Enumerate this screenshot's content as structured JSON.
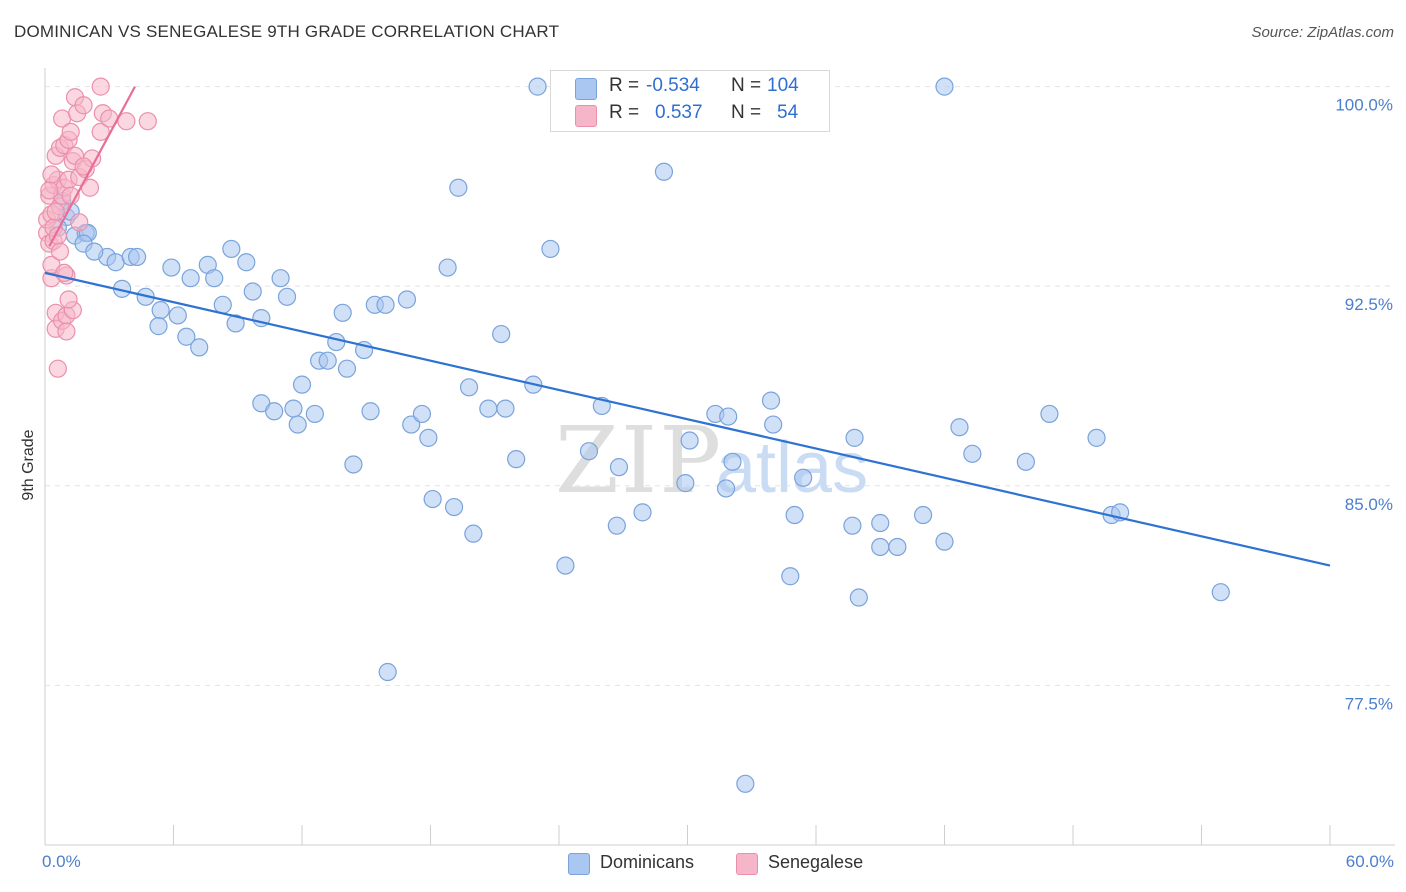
{
  "header": {
    "title": "DOMINICAN VS SENEGALESE 9TH GRADE CORRELATION CHART",
    "source": "Source: ZipAtlas.com"
  },
  "legend": {
    "rows": [
      {
        "r_label": "R =",
        "r_value": "-0.534",
        "n_label": "N =",
        "n_value": "104",
        "color": "#a9c7f0"
      },
      {
        "r_label": "R =",
        "r_value": "0.537",
        "n_label": "N =",
        "n_value": "54",
        "color": "#f6b6c9"
      }
    ]
  },
  "bottom_legend": [
    {
      "label": "Dominicans",
      "color": "#a9c7f0"
    },
    {
      "label": "Senegalese",
      "color": "#f6b6c9"
    }
  ],
  "watermark": {
    "zip": "ZIP",
    "atlas": "atlas"
  },
  "chart_data": {
    "type": "scatter",
    "ylabel": "9th Grade",
    "xlabel": "",
    "xlim": [
      0,
      60
    ],
    "ylim": [
      71.5,
      101
    ],
    "x_tick_labels": [
      "0.0%",
      "60.0%"
    ],
    "y_ticks": [
      77.5,
      85.0,
      92.5,
      100.0
    ],
    "y_tick_labels": [
      "77.5%",
      "85.0%",
      "92.5%",
      "100.0%"
    ],
    "grid": true,
    "legend_position": "top-center",
    "series": [
      {
        "name": "Dominicans",
        "color": "#a9c7f0",
        "stroke": "#7aa3dc",
        "trend_color": "#2e72d2",
        "trend": {
          "x": [
            0,
            60
          ],
          "y": [
            93.0,
            82.0
          ]
        },
        "points": [
          [
            0.8,
            95.7
          ],
          [
            1.0,
            95.1
          ],
          [
            1.4,
            94.4
          ],
          [
            1.9,
            94.5
          ],
          [
            2.0,
            94.5
          ],
          [
            1.8,
            94.1
          ],
          [
            2.9,
            93.6
          ],
          [
            3.3,
            93.4
          ],
          [
            4.0,
            93.6
          ],
          [
            4.3,
            93.6
          ],
          [
            3.6,
            92.4
          ],
          [
            4.7,
            92.1
          ],
          [
            5.4,
            91.6
          ],
          [
            5.3,
            91.0
          ],
          [
            5.9,
            93.2
          ],
          [
            6.2,
            91.4
          ],
          [
            6.6,
            90.6
          ],
          [
            7.2,
            90.2
          ],
          [
            6.8,
            92.8
          ],
          [
            7.6,
            93.3
          ],
          [
            7.9,
            92.8
          ],
          [
            8.3,
            91.8
          ],
          [
            8.7,
            93.9
          ],
          [
            8.9,
            91.1
          ],
          [
            9.4,
            93.4
          ],
          [
            9.7,
            92.3
          ],
          [
            10.1,
            88.1
          ],
          [
            10.7,
            87.8
          ],
          [
            10.1,
            91.3
          ],
          [
            11.0,
            92.8
          ],
          [
            11.3,
            92.1
          ],
          [
            11.6,
            87.9
          ],
          [
            11.8,
            87.3
          ],
          [
            12.0,
            88.8
          ],
          [
            12.6,
            87.7
          ],
          [
            12.8,
            89.7
          ],
          [
            13.2,
            89.7
          ],
          [
            13.6,
            90.4
          ],
          [
            13.9,
            91.5
          ],
          [
            14.1,
            89.4
          ],
          [
            14.4,
            85.8
          ],
          [
            14.9,
            90.1
          ],
          [
            15.2,
            87.8
          ],
          [
            15.4,
            91.8
          ],
          [
            15.9,
            91.8
          ],
          [
            16.9,
            92.0
          ],
          [
            17.1,
            87.3
          ],
          [
            17.6,
            87.7
          ],
          [
            17.9,
            86.8
          ],
          [
            18.1,
            84.5
          ],
          [
            18.8,
            93.2
          ],
          [
            19.1,
            84.2
          ],
          [
            19.3,
            96.2
          ],
          [
            19.8,
            88.7
          ],
          [
            20.0,
            83.2
          ],
          [
            20.7,
            87.9
          ],
          [
            21.3,
            90.7
          ],
          [
            21.5,
            87.9
          ],
          [
            22.0,
            86.0
          ],
          [
            22.8,
            88.8
          ],
          [
            23.0,
            100.0
          ],
          [
            23.6,
            93.9
          ],
          [
            24.1,
            100.0
          ],
          [
            24.3,
            82.0
          ],
          [
            25.4,
            86.3
          ],
          [
            26.0,
            88.0
          ],
          [
            26.7,
            83.5
          ],
          [
            26.8,
            85.7
          ],
          [
            27.9,
            84.0
          ],
          [
            28.9,
            96.8
          ],
          [
            29.9,
            85.1
          ],
          [
            30.1,
            86.7
          ],
          [
            31.3,
            87.7
          ],
          [
            31.9,
            87.6
          ],
          [
            32.1,
            85.9
          ],
          [
            31.8,
            84.9
          ],
          [
            32.7,
            73.8
          ],
          [
            33.1,
            100.0
          ],
          [
            33.9,
            88.2
          ],
          [
            34.0,
            87.3
          ],
          [
            34.8,
            81.6
          ],
          [
            35.0,
            83.9
          ],
          [
            35.4,
            85.3
          ],
          [
            37.7,
            83.5
          ],
          [
            37.8,
            86.8
          ],
          [
            38.0,
            80.8
          ],
          [
            39.0,
            83.6
          ],
          [
            39.0,
            82.7
          ],
          [
            39.8,
            82.7
          ],
          [
            41.0,
            83.9
          ],
          [
            42.0,
            82.9
          ],
          [
            42.7,
            87.2
          ],
          [
            43.3,
            86.2
          ],
          [
            42.0,
            100.0
          ],
          [
            45.8,
            85.9
          ],
          [
            46.9,
            87.7
          ],
          [
            49.1,
            86.8
          ],
          [
            49.8,
            83.9
          ],
          [
            50.2,
            84.0
          ],
          [
            54.9,
            81.0
          ],
          [
            16.0,
            78.0
          ],
          [
            0.6,
            94.7
          ],
          [
            1.2,
            95.3
          ],
          [
            2.3,
            93.8
          ]
        ]
      },
      {
        "name": "Senegalese",
        "color": "#f6b6c9",
        "stroke": "#ec8fab",
        "trend_color": "#e86d98",
        "trend": {
          "x": [
            0.2,
            4.2
          ],
          "y": [
            94.0,
            100.0
          ]
        },
        "points": [
          [
            0.1,
            94.5
          ],
          [
            0.1,
            95.0
          ],
          [
            0.2,
            94.1
          ],
          [
            0.2,
            95.9
          ],
          [
            0.3,
            92.8
          ],
          [
            0.3,
            93.3
          ],
          [
            0.3,
            95.2
          ],
          [
            0.4,
            94.2
          ],
          [
            0.4,
            96.3
          ],
          [
            0.4,
            94.7
          ],
          [
            0.5,
            97.4
          ],
          [
            0.5,
            91.5
          ],
          [
            0.5,
            90.9
          ],
          [
            0.6,
            96.5
          ],
          [
            0.6,
            89.4
          ],
          [
            0.6,
            94.4
          ],
          [
            0.7,
            97.7
          ],
          [
            0.7,
            95.5
          ],
          [
            0.7,
            93.8
          ],
          [
            0.8,
            98.8
          ],
          [
            0.8,
            95.9
          ],
          [
            0.8,
            91.2
          ],
          [
            0.9,
            97.8
          ],
          [
            0.9,
            96.2
          ],
          [
            1.0,
            92.9
          ],
          [
            1.0,
            91.4
          ],
          [
            1.0,
            90.8
          ],
          [
            1.1,
            98.0
          ],
          [
            1.1,
            96.5
          ],
          [
            1.2,
            98.3
          ],
          [
            1.2,
            95.9
          ],
          [
            1.3,
            97.2
          ],
          [
            1.3,
            91.6
          ],
          [
            1.4,
            99.6
          ],
          [
            1.4,
            97.4
          ],
          [
            1.5,
            99.0
          ],
          [
            1.6,
            96.6
          ],
          [
            1.6,
            94.9
          ],
          [
            1.8,
            99.3
          ],
          [
            1.9,
            96.9
          ],
          [
            2.1,
            96.2
          ],
          [
            2.2,
            97.3
          ],
          [
            2.6,
            98.3
          ],
          [
            2.7,
            99.0
          ],
          [
            3.0,
            98.8
          ],
          [
            3.8,
            98.7
          ],
          [
            0.2,
            96.1
          ],
          [
            0.3,
            96.7
          ],
          [
            0.5,
            95.3
          ],
          [
            0.9,
            93.0
          ],
          [
            1.1,
            92.0
          ],
          [
            2.6,
            100.0
          ],
          [
            4.8,
            98.7
          ],
          [
            1.8,
            97.0
          ]
        ]
      }
    ]
  }
}
